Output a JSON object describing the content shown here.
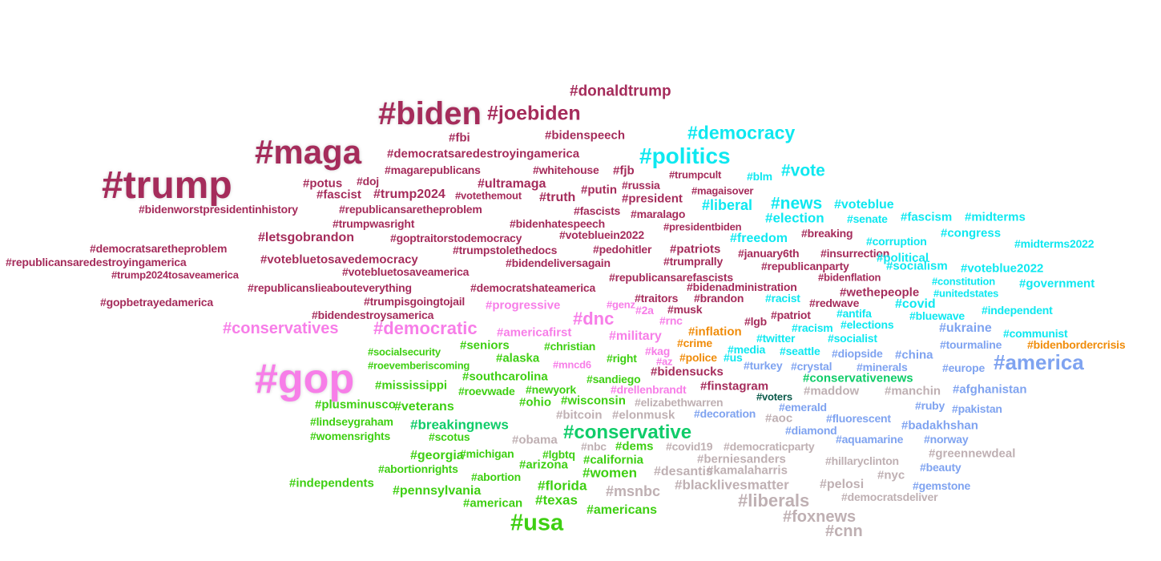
{
  "palette": {
    "maroon": "#a52c5b",
    "cyan": "#0ee8f0",
    "pink": "#f77ee8",
    "green": "#3ecf12",
    "teal_green": "#0fcc69",
    "dark_teal": "#0a5a4a",
    "taupe": "#bfb0b3",
    "periwinkle": "#7fa3f0",
    "orange": "#f08c0a"
  },
  "words": [
    "#donaldtrump",
    "#biden",
    "#joebiden",
    "#democracy",
    "#bidenspeech",
    "#fbi",
    "#maga",
    "#democratsaredestroyingamerica",
    "#politics",
    "#magarepublicans",
    "#whitehouse",
    "#fjb",
    "#trumpcult",
    "#blm",
    "#vote",
    "#trump",
    "#potus",
    "#doj",
    "#ultramaga",
    "#russia",
    "#fascist",
    "#trump2024",
    "#votethemout",
    "#truth",
    "#putin",
    "#president",
    "#magaisover",
    "#news",
    "#voteblue",
    "#bidenworstpresidentinhistory",
    "#republicansaretheproblem",
    "#fascists",
    "#liberal",
    "#maralago",
    "#election",
    "#senate",
    "#fascism",
    "#midterms",
    "#trumpwasright",
    "#bidenhatespeech",
    "#presidentbiden",
    "#letsgobrandon",
    "#goptraitorstodemocracy",
    "#votebluein2022",
    "#freedom",
    "#breaking",
    "#congress",
    "#corruption",
    "#midterms2022",
    "#democratsaretheproblem",
    "#trumpstolethedocs",
    "#pedohitler",
    "#patriots",
    "#january6th",
    "#insurrection",
    "#political",
    "#republicansaredestroyingamerica",
    "#votebluetosavedemocracy",
    "#bidendeliversagain",
    "#trumprally",
    "#republicanparty",
    "#socialism",
    "#voteblue2022",
    "#trump2024tosaveamerica",
    "#votebluetosaveamerica",
    "#republicansarefascists",
    "#bidenflation",
    "#constitution",
    "#government",
    "#republicanslieabouteverything",
    "#democratshateamerica",
    "#bidenadministration",
    "#wethepeople",
    "#unitedstates",
    "#gopbetrayedamerica",
    "#trumpisgoingtojail",
    "#progressive",
    "#genz",
    "#traitors",
    "#brandon",
    "#racist",
    "#redwave",
    "#covid",
    "#2a",
    "#musk",
    "#antifa",
    "#bluewave",
    "#independent",
    "#bidendestroysamerica",
    "#dnc",
    "#rnc",
    "#lgb",
    "#patriot",
    "#elections",
    "#conservatives",
    "#democratic",
    "#americafirst",
    "#inflation",
    "#racism",
    "#ukraine",
    "#communist",
    "#military",
    "#twitter",
    "#socialist",
    "#seniors",
    "#christian",
    "#kag",
    "#crime",
    "#media",
    "#seattle",
    "#diopside",
    "#china",
    "#tourmaline",
    "#bidenbordercrisis",
    "#socialsecurity",
    "#alaska",
    "#right",
    "#az",
    "#police",
    "#us",
    "#america",
    "#roevemberiscoming",
    "#mncd6",
    "#bidensucks",
    "#turkey",
    "#crystal",
    "#minerals",
    "#europe",
    "#gop",
    "#southcarolina",
    "#sandiego",
    "#conservativenews",
    "#mississippi",
    "#roevwade",
    "#newyork",
    "#drellenbrandt",
    "#finstagram",
    "#maddow",
    "#manchin",
    "#afghanistan",
    "#voters",
    "#plusminusco",
    "#ohio",
    "#wisconsin",
    "#elizabethwarren",
    "#veterans",
    "#emerald",
    "#ruby",
    "#pakistan",
    "#bitcoin",
    "#elonmusk",
    "#decoration",
    "#aoc",
    "#fluorescent",
    "#lindseygraham",
    "#breakingnews",
    "#badakhshan",
    "#diamond",
    "#conservative",
    "#womensrights",
    "#scotus",
    "#obama",
    "#nbc",
    "#dems",
    "#covid19",
    "#democraticparty",
    "#aquamarine",
    "#norway",
    "#greennewdeal",
    "#georgia",
    "#michigan",
    "#lgbtq",
    "#california",
    "#berniesanders",
    "#hillaryclinton",
    "#abortionrights",
    "#arizona",
    "#kamalaharris",
    "#beauty",
    "#women",
    "#desantis",
    "#abortion",
    "#nyc",
    "#independents",
    "#florida",
    "#blacklivesmatter",
    "#pelosi",
    "#gemstone",
    "#pennsylvania",
    "#msnbc",
    "#democratsdeliver",
    "#american",
    "#texas",
    "#liberals",
    "#americans",
    "#foxnews",
    "#usa",
    "#cnn"
  ]
}
